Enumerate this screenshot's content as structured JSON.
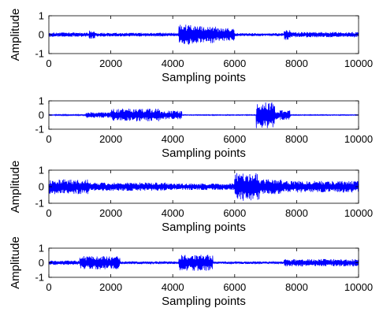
{
  "chart_data": [
    {
      "type": "line",
      "xlabel": "Sampling points",
      "ylabel": "Amplitude",
      "xlim": [
        0,
        10000
      ],
      "ylim": [
        -1,
        1
      ],
      "xticks": [
        0,
        2000,
        4000,
        6000,
        8000,
        10000
      ],
      "yticks": [
        -1,
        0,
        1
      ],
      "series_color": "#0000ff",
      "envelope": [
        {
          "start": 0,
          "end": 1300,
          "amp": 0.12
        },
        {
          "start": 1300,
          "end": 1500,
          "amp": 0.22
        },
        {
          "start": 1500,
          "end": 4200,
          "amp": 0.1
        },
        {
          "start": 4200,
          "end": 4700,
          "amp": 0.55
        },
        {
          "start": 4700,
          "end": 5400,
          "amp": 0.45
        },
        {
          "start": 5400,
          "end": 6000,
          "amp": 0.35
        },
        {
          "start": 6000,
          "end": 7600,
          "amp": 0.08
        },
        {
          "start": 7600,
          "end": 7800,
          "amp": 0.3
        },
        {
          "start": 7800,
          "end": 10000,
          "amp": 0.14
        }
      ]
    },
    {
      "type": "line",
      "xlabel": "Sampling points",
      "ylabel": "",
      "xlim": [
        0,
        10000
      ],
      "ylim": [
        -1,
        1
      ],
      "xticks": [
        0,
        2000,
        4000,
        6000,
        8000,
        10000
      ],
      "yticks": [
        -1,
        0,
        1
      ],
      "series_color": "#0000ff",
      "envelope": [
        {
          "start": 0,
          "end": 1200,
          "amp": 0.04
        },
        {
          "start": 1200,
          "end": 2000,
          "amp": 0.2
        },
        {
          "start": 2000,
          "end": 3600,
          "amp": 0.45
        },
        {
          "start": 3600,
          "end": 4300,
          "amp": 0.3
        },
        {
          "start": 4300,
          "end": 6700,
          "amp": 0.03
        },
        {
          "start": 6700,
          "end": 7300,
          "amp": 0.95
        },
        {
          "start": 7300,
          "end": 7800,
          "amp": 0.35
        },
        {
          "start": 7800,
          "end": 10000,
          "amp": 0.03
        }
      ]
    },
    {
      "type": "line",
      "xlabel": "Sampling points",
      "ylabel": "Amplitude",
      "xlim": [
        0,
        10000
      ],
      "ylim": [
        -1,
        1
      ],
      "xticks": [
        0,
        2000,
        4000,
        6000,
        8000,
        10000
      ],
      "yticks": [
        -1,
        0,
        1
      ],
      "series_color": "#0000ff",
      "envelope": [
        {
          "start": 0,
          "end": 1300,
          "amp": 0.45
        },
        {
          "start": 1300,
          "end": 3800,
          "amp": 0.25
        },
        {
          "start": 3800,
          "end": 6000,
          "amp": 0.2
        },
        {
          "start": 6000,
          "end": 6800,
          "amp": 0.85
        },
        {
          "start": 6800,
          "end": 7500,
          "amp": 0.45
        },
        {
          "start": 7500,
          "end": 10000,
          "amp": 0.35
        }
      ]
    },
    {
      "type": "line",
      "xlabel": "Sampling points",
      "ylabel": "Amplitude",
      "xlim": [
        0,
        10000
      ],
      "ylim": [
        -1,
        1
      ],
      "xticks": [
        0,
        2000,
        4000,
        6000,
        8000,
        10000
      ],
      "yticks": [
        -1,
        0,
        1
      ],
      "series_color": "#0000ff",
      "envelope": [
        {
          "start": 0,
          "end": 1000,
          "amp": 0.15
        },
        {
          "start": 1000,
          "end": 2300,
          "amp": 0.45
        },
        {
          "start": 2300,
          "end": 4200,
          "amp": 0.1
        },
        {
          "start": 4200,
          "end": 5300,
          "amp": 0.55
        },
        {
          "start": 5300,
          "end": 7600,
          "amp": 0.08
        },
        {
          "start": 7600,
          "end": 10000,
          "amp": 0.25
        }
      ]
    }
  ]
}
